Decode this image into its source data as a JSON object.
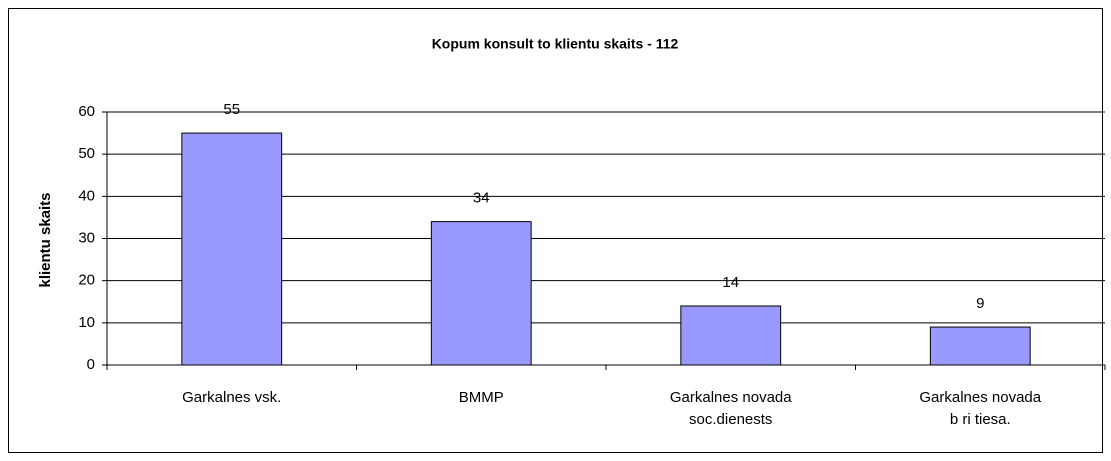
{
  "chart_data": {
    "type": "bar",
    "title": "Kopum konsult to klientu skaits - 112",
    "y_label": "klientu skaits",
    "categories": [
      "Garkalnes vsk.",
      "BMMP",
      "Garkalnes novada\nsoc.dienests",
      "Garkalnes novada\nb ri tiesa."
    ],
    "values": [
      55,
      34,
      14,
      9
    ],
    "color": "#9999ff",
    "ylim": [
      0,
      60
    ],
    "yticks": [
      0,
      10,
      20,
      30,
      40,
      50,
      60
    ],
    "grid": true
  }
}
